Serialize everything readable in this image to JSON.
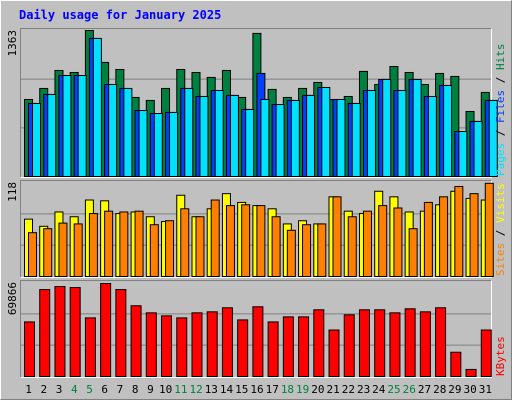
{
  "title": "Daily usage for January 2025",
  "legend_separator": " / ",
  "chart_data": [
    {
      "type": "bar",
      "ylim": [
        0,
        1363
      ],
      "yticks": [
        1363
      ],
      "series": [
        {
          "name": "Hits",
          "color": "#008040",
          "values": [
            719,
            822,
            990,
            971,
            1363,
            1065,
            999,
            738,
            710,
            822,
            999,
            971,
            925,
            990,
            738,
            1336,
            813,
            738,
            822,
            878,
            719,
            747,
            981,
            859,
            1027,
            971,
            859,
            962,
            934,
            607,
            785
          ]
        },
        {
          "name": "Files",
          "color": "#0040ff",
          "values": [
            682,
            766,
            943,
            943,
            1289,
            859,
            822,
            616,
            588,
            598,
            822,
            747,
            803,
            757,
            626,
            962,
            672,
            710,
            757,
            831,
            719,
            682,
            803,
            906,
            803,
            906,
            747,
            850,
            420,
            514,
            710
          ]
        },
        {
          "name": "Pages",
          "color": "#00e0ff",
          "values": [
            682,
            766,
            943,
            943,
            1289,
            859,
            822,
            616,
            588,
            598,
            822,
            747,
            803,
            757,
            626,
            719,
            672,
            710,
            757,
            831,
            719,
            682,
            803,
            906,
            803,
            906,
            747,
            850,
            420,
            514,
            710
          ]
        }
      ]
    },
    {
      "type": "bar",
      "ylim": [
        0,
        118
      ],
      "yticks": [
        118
      ],
      "series": [
        {
          "name": "Visits",
          "color": "#ffff00",
          "values": [
            72,
            63,
            81,
            75,
            96,
            95,
            79,
            81,
            75,
            69,
            102,
            75,
            85,
            104,
            93,
            89,
            85,
            66,
            70,
            66,
            100,
            82,
            79,
            107,
            100,
            81,
            82,
            90,
            107,
            98,
            96
          ]
        },
        {
          "name": "Sites",
          "color": "#ff8000",
          "values": [
            55,
            60,
            67,
            66,
            79,
            82,
            81,
            82,
            65,
            70,
            85,
            75,
            96,
            89,
            90,
            89,
            75,
            58,
            65,
            66,
            100,
            75,
            82,
            89,
            86,
            60,
            93,
            100,
            113,
            104,
            117
          ]
        }
      ]
    },
    {
      "type": "bar",
      "ylim": [
        0,
        69866
      ],
      "yticks": [
        69866
      ],
      "series": [
        {
          "name": "KBytes",
          "color": "#ff0000",
          "values": [
            40566,
            64603,
            66857,
            66106,
            43570,
            69110,
            64603,
            52584,
            47326,
            45072,
            43570,
            47326,
            48077,
            51082,
            42067,
            51833,
            40566,
            44321,
            44321,
            49579,
            34555,
            45823,
            49579,
            49579,
            47326,
            50330,
            48077,
            51082,
            18029,
            5258,
            34555
          ]
        }
      ],
      "categories": [
        "1",
        "2",
        "3",
        "4",
        "5",
        "6",
        "7",
        "8",
        "9",
        "10",
        "11",
        "12",
        "13",
        "14",
        "15",
        "16",
        "17",
        "18",
        "19",
        "20",
        "21",
        "22",
        "23",
        "24",
        "25",
        "26",
        "27",
        "28",
        "29",
        "30",
        "31"
      ],
      "category_colors": [
        "#000000",
        "#000000",
        "#000000",
        "#008040",
        "#008040",
        "#000000",
        "#000000",
        "#000000",
        "#000000",
        "#000000",
        "#008040",
        "#008040",
        "#000000",
        "#000000",
        "#000000",
        "#000000",
        "#000000",
        "#008040",
        "#008040",
        "#000000",
        "#000000",
        "#000000",
        "#000000",
        "#000000",
        "#008040",
        "#008040",
        "#000000",
        "#000000",
        "#000000",
        "#000000",
        "#000000"
      ]
    }
  ]
}
